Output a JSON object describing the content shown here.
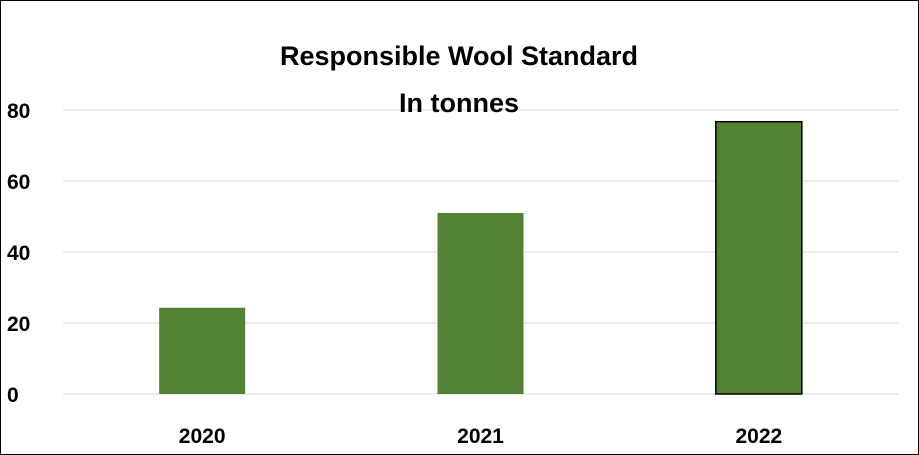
{
  "chart_data": {
    "type": "bar",
    "title": "Responsible Wool Standard",
    "subtitle": "In tonnes",
    "categories": [
      "2020",
      "2021",
      "2022"
    ],
    "values": [
      24.3,
      51,
      76.7
    ],
    "ylim": [
      0,
      80
    ],
    "yticks": [
      0,
      20,
      40,
      60,
      80
    ],
    "xlabel": "",
    "ylabel": "",
    "grid": true,
    "legend": "none",
    "bar_color": "#548235",
    "highlight_index": 2,
    "highlight_border_color": "#000000",
    "grid_color": "#d9d9d9"
  }
}
